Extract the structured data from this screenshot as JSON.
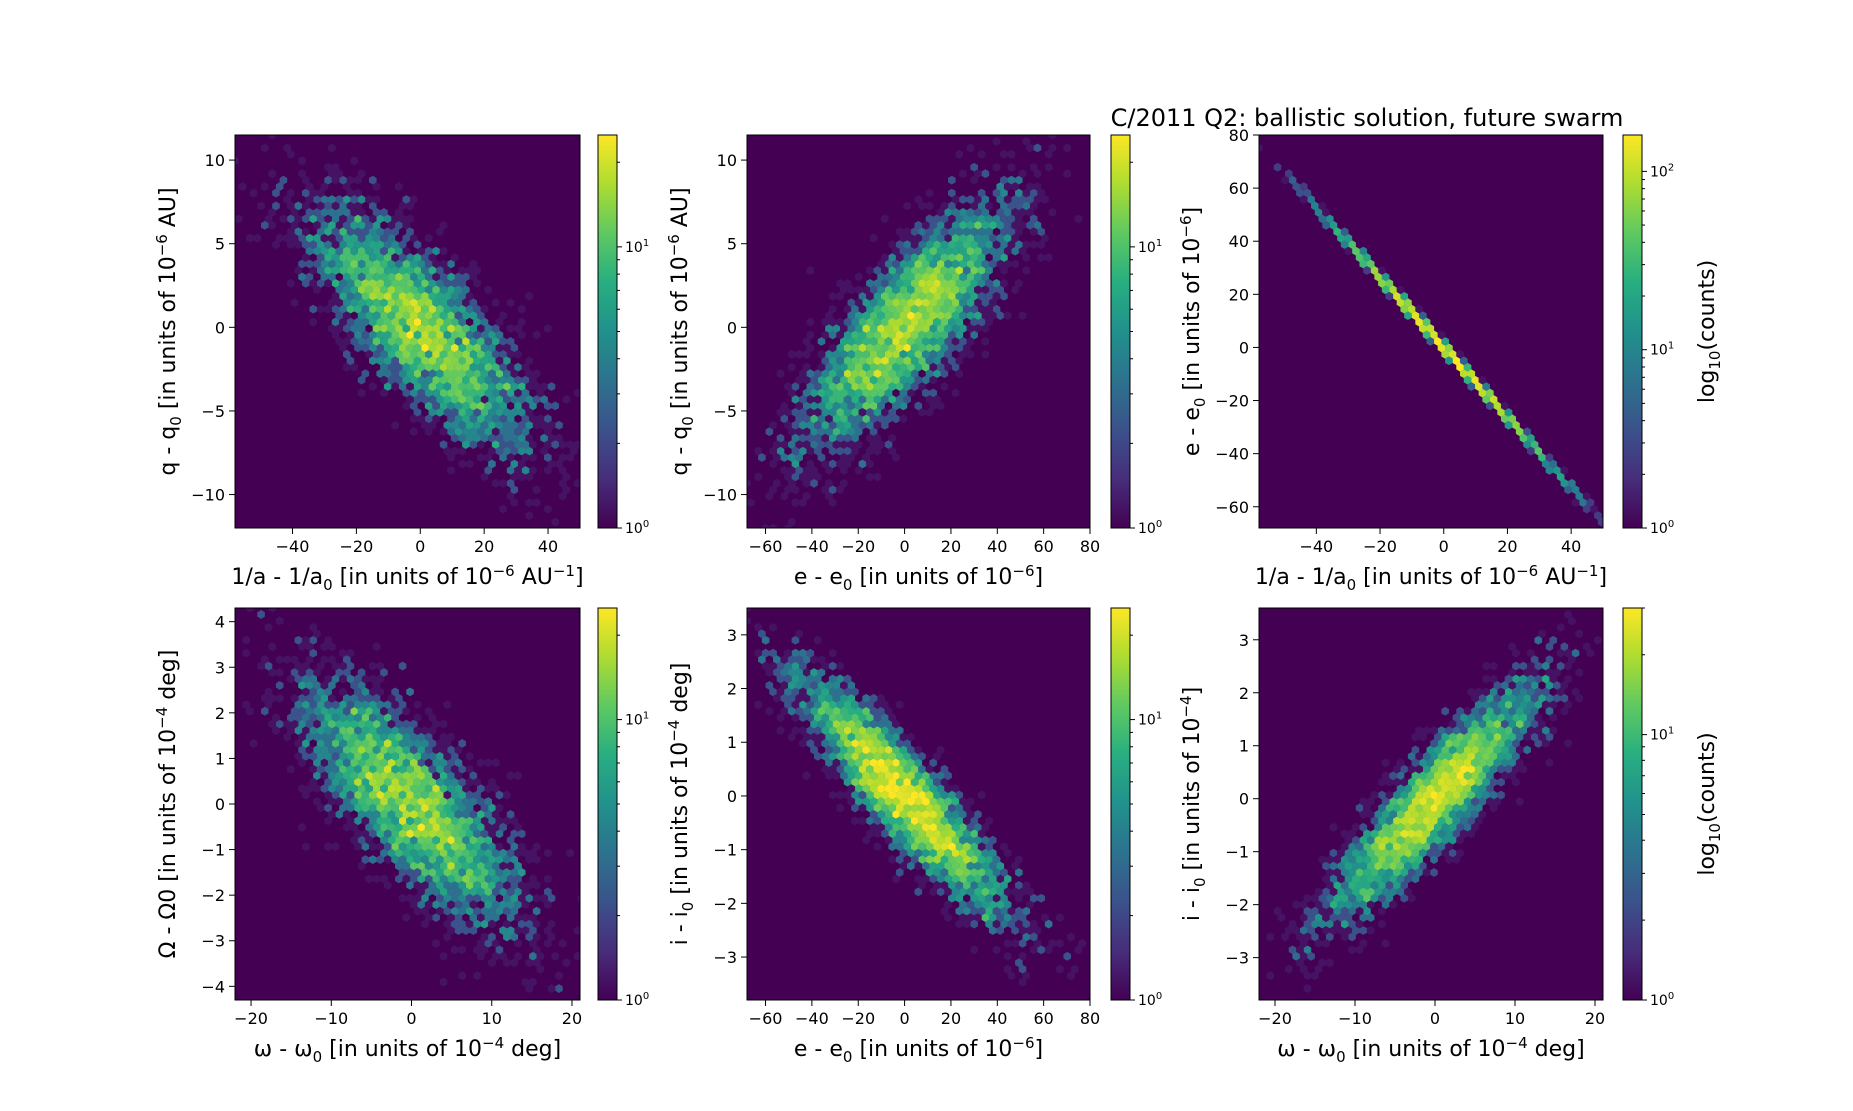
{
  "figure": {
    "title": "C/2011 Q2: ballistic solution, future swarm",
    "background": "#440154"
  },
  "chart_data": [
    {
      "type": "heatmap",
      "id": "p1",
      "xlabel": "1/a - 1/a0 [in units of 10^-6 AU^-1]",
      "ylabel": "q - q0 [in units of 10^-6 AU]",
      "xlim": [
        -58,
        50
      ],
      "ylim": [
        -12,
        11.5
      ],
      "xticks": [
        "−40",
        "−20",
        "0",
        "20",
        "40"
      ],
      "xtick_values": [
        -40,
        -20,
        0,
        20,
        40
      ],
      "yticks": [
        "−10",
        "−5",
        "0",
        "5",
        "10"
      ],
      "ytick_values": [
        -10,
        -5,
        0,
        5,
        10
      ],
      "distribution": {
        "x_mean": 0,
        "x_sd": 17,
        "y_mean": 0,
        "y_sd": 3.6,
        "corr": -0.78,
        "n": 4200,
        "seed": 11
      },
      "colorbar": {
        "scale": "log",
        "min": 1,
        "max": 25,
        "ticks": [
          "10^0",
          "10^1"
        ],
        "tick_values": [
          1,
          10
        ],
        "label": ""
      }
    },
    {
      "type": "heatmap",
      "id": "p2",
      "xlabel": "e - e0 [in units of 10^-6]",
      "ylabel": "q - q0 [in units of 10^-6 AU]",
      "xlim": [
        -68,
        80
      ],
      "ylim": [
        -12,
        11.5
      ],
      "xticks": [
        "−60",
        "−40",
        "−20",
        "0",
        "20",
        "40",
        "60",
        "80"
      ],
      "xtick_values": [
        -60,
        -40,
        -20,
        0,
        20,
        40,
        60,
        80
      ],
      "yticks": [
        "−10",
        "−5",
        "0",
        "5",
        "10"
      ],
      "ytick_values": [
        -10,
        -5,
        0,
        5,
        10
      ],
      "distribution": {
        "x_mean": 0,
        "x_sd": 22,
        "y_mean": 0,
        "y_sd": 3.6,
        "corr": 0.8,
        "n": 4200,
        "seed": 23
      },
      "colorbar": {
        "scale": "log",
        "min": 1,
        "max": 25,
        "ticks": [
          "10^0",
          "10^1"
        ],
        "tick_values": [
          1,
          10
        ],
        "label": ""
      }
    },
    {
      "type": "heatmap",
      "id": "p3",
      "xlabel": "1/a - 1/a0 [in units of 10^-6 AU^-1]",
      "ylabel": "e - e0 [in units of 10^-6]",
      "xlim": [
        -58,
        50
      ],
      "ylim": [
        -68,
        80
      ],
      "xticks": [
        "−40",
        "−20",
        "0",
        "20",
        "40"
      ],
      "xtick_values": [
        -40,
        -20,
        0,
        20,
        40
      ],
      "yticks": [
        "−60",
        "−40",
        "−20",
        "0",
        "20",
        "40",
        "60",
        "80"
      ],
      "ytick_values": [
        -60,
        -40,
        -20,
        0,
        20,
        40,
        60,
        80
      ],
      "distribution": {
        "x_mean": 0,
        "x_sd": 17,
        "y_mean": 0,
        "y_sd": 22.4,
        "corr": -0.9995,
        "n": 4200,
        "seed": 37
      },
      "colorbar": {
        "scale": "log",
        "min": 1,
        "max": 160,
        "ticks": [
          "10^0",
          "10^1",
          "10^2"
        ],
        "tick_values": [
          1,
          10,
          100
        ],
        "label": "log10(counts)"
      }
    },
    {
      "type": "heatmap",
      "id": "p4",
      "xlabel": "ω - ω0 [in units of 10^-4 deg]",
      "ylabel": "Ω - Ω0 [in units of 10^-4 deg]",
      "xlim": [
        -22,
        21
      ],
      "ylim": [
        -4.3,
        4.3
      ],
      "xticks": [
        "−20",
        "−10",
        "0",
        "10",
        "20"
      ],
      "xtick_values": [
        -20,
        -10,
        0,
        10,
        20
      ],
      "yticks": [
        "−4",
        "−3",
        "−2",
        "−1",
        "0",
        "1",
        "2",
        "3",
        "4"
      ],
      "ytick_values": [
        -4,
        -3,
        -2,
        -1,
        0,
        1,
        2,
        3,
        4
      ],
      "distribution": {
        "x_mean": 0,
        "x_sd": 6.5,
        "y_mean": 0,
        "y_sd": 1.3,
        "corr": -0.75,
        "n": 4200,
        "seed": 41
      },
      "colorbar": {
        "scale": "log",
        "min": 1,
        "max": 25,
        "ticks": [
          "10^0",
          "10^1"
        ],
        "tick_values": [
          1,
          10
        ],
        "label": ""
      }
    },
    {
      "type": "heatmap",
      "id": "p5",
      "xlabel": "e - e0 [in units of 10^-6]",
      "ylabel": "i - i0 [in units of 10^-4 deg]",
      "xlim": [
        -68,
        80
      ],
      "ylim": [
        -3.8,
        3.5
      ],
      "xticks": [
        "−60",
        "−40",
        "−20",
        "0",
        "20",
        "40",
        "60",
        "80"
      ],
      "xtick_values": [
        -60,
        -40,
        -20,
        0,
        20,
        40,
        60,
        80
      ],
      "yticks": [
        "−3",
        "−2",
        "−1",
        "0",
        "1",
        "2",
        "3"
      ],
      "ytick_values": [
        -3,
        -2,
        -1,
        0,
        1,
        2,
        3
      ],
      "distribution": {
        "x_mean": 0,
        "x_sd": 22,
        "y_mean": 0,
        "y_sd": 1.1,
        "corr": -0.9,
        "n": 4200,
        "seed": 53
      },
      "colorbar": {
        "scale": "log",
        "min": 1,
        "max": 25,
        "ticks": [
          "10^0",
          "10^1"
        ],
        "tick_values": [
          1,
          10
        ],
        "label": ""
      }
    },
    {
      "type": "heatmap",
      "id": "p6",
      "xlabel": "ω - ω0 [in units of 10^-4 deg]",
      "ylabel": "i - i0 [in units of 10^-4]",
      "xlim": [
        -22,
        21
      ],
      "ylim": [
        -3.8,
        3.6
      ],
      "xticks": [
        "−20",
        "−10",
        "0",
        "10",
        "20"
      ],
      "xtick_values": [
        -20,
        -10,
        0,
        10,
        20
      ],
      "yticks": [
        "−3",
        "−2",
        "−1",
        "0",
        "1",
        "2",
        "3"
      ],
      "ytick_values": [
        -3,
        -2,
        -1,
        0,
        1,
        2,
        3
      ],
      "distribution": {
        "x_mean": 0,
        "x_sd": 6.5,
        "y_mean": 0,
        "y_sd": 1.1,
        "corr": 0.9,
        "n": 4200,
        "seed": 67
      },
      "colorbar": {
        "scale": "log",
        "min": 1,
        "max": 30,
        "ticks": [
          "10^0",
          "10^1"
        ],
        "tick_values": [
          1,
          10
        ],
        "label": "log10(counts)"
      }
    }
  ]
}
